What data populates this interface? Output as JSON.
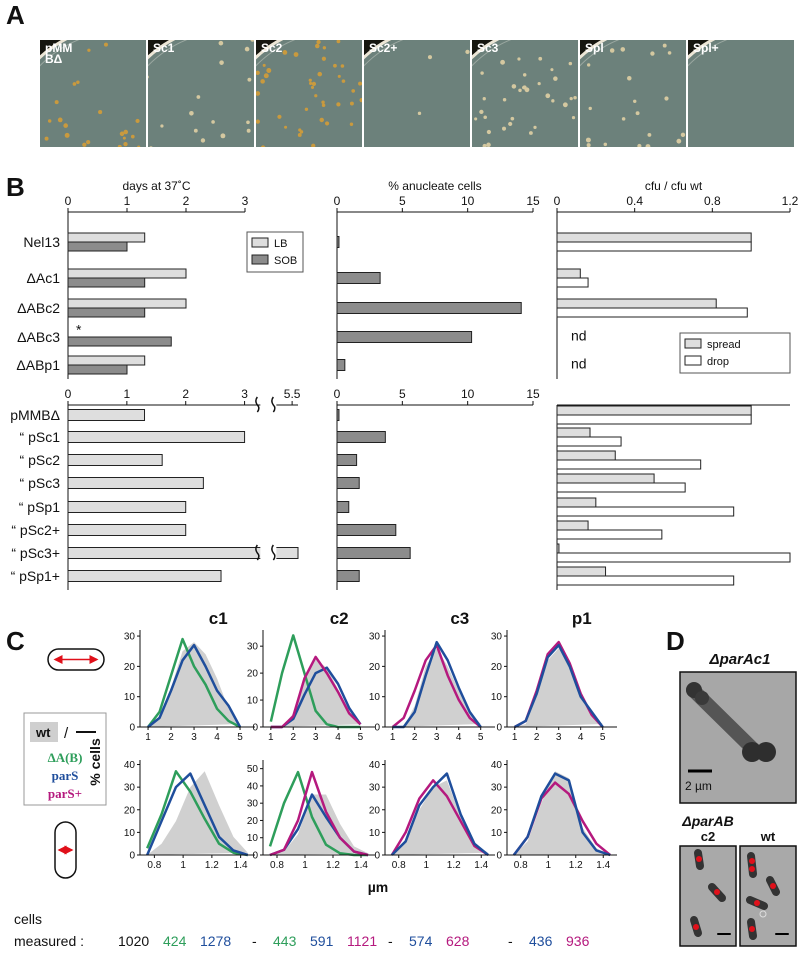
{
  "panel_labels": [
    "A",
    "B",
    "C",
    "D"
  ],
  "panel_a": {
    "plates": [
      [
        "pMM",
        "BΔ"
      ],
      [
        "Sc1"
      ],
      [
        "Sc2"
      ],
      [
        "Sc2+"
      ],
      [
        "Sc3"
      ],
      [
        "Spl"
      ],
      [
        "Spl+"
      ]
    ]
  },
  "chart_data": [
    {
      "type": "bar",
      "orientation": "horizontal",
      "title": "days at 37˚C",
      "categories": [
        "Nel13",
        "ΔAc1",
        "ΔABc2",
        "ΔABc3",
        "ΔABp1"
      ],
      "xlim": [
        0,
        3
      ],
      "xticks": [
        0,
        1,
        2,
        3
      ],
      "legend": "upper right",
      "series": [
        {
          "name": "LB",
          "color": "#dedede",
          "values": [
            1.3,
            2.0,
            2.0,
            null,
            1.3
          ],
          "value_labels": [
            null,
            null,
            null,
            "*",
            null
          ]
        },
        {
          "name": "SOB",
          "color": "#8c8c8c",
          "values": [
            1.0,
            1.3,
            1.3,
            1.75,
            1.0
          ]
        }
      ]
    },
    {
      "type": "bar",
      "orientation": "horizontal",
      "title": "% anucleate cells",
      "xlim": [
        0,
        15
      ],
      "xticks": [
        0,
        5,
        10,
        15
      ],
      "series": [
        {
          "color": "#8c8c8c",
          "values": [
            0.15,
            3.3,
            14.1,
            10.3,
            0.6
          ]
        }
      ]
    },
    {
      "type": "bar",
      "orientation": "horizontal",
      "title": "cfu / cfu wt",
      "xlim": [
        0,
        1.2
      ],
      "xticks": [
        0,
        0.4,
        0.8,
        1.2
      ],
      "legend": "lower right",
      "series": [
        {
          "name": "spread",
          "color": "#dedede",
          "values": [
            1.0,
            0.12,
            0.82,
            null,
            null
          ],
          "value_labels": [
            null,
            null,
            null,
            "nd",
            "nd"
          ]
        },
        {
          "name": "drop",
          "color": "#ffffff",
          "values": [
            1.0,
            0.16,
            0.98,
            null,
            null
          ]
        }
      ]
    },
    {
      "type": "bar",
      "orientation": "horizontal",
      "categories": [
        "pMMBΔ",
        "“ pSc1",
        "“ pSc2",
        "“ pSc3",
        "“ pSp1",
        "“ pSc2+",
        "“ pSc3+",
        "“ pSp1+"
      ],
      "xlim": [
        0,
        5.6
      ],
      "xbreak": [
        3.2,
        5.3
      ],
      "xticks": [
        0,
        1,
        2,
        3,
        5.5
      ],
      "series": [
        {
          "color": "#dedede",
          "values": [
            1.3,
            3.0,
            1.6,
            2.3,
            2.0,
            2.0,
            5.6,
            2.6
          ]
        }
      ]
    },
    {
      "type": "bar",
      "orientation": "horizontal",
      "xlim": [
        0,
        15
      ],
      "xticks": [
        0,
        5,
        10,
        15
      ],
      "series": [
        {
          "color": "#8c8c8c",
          "values": [
            0.15,
            3.7,
            1.5,
            1.7,
            0.9,
            4.5,
            5.6,
            1.7
          ]
        }
      ]
    },
    {
      "type": "bar",
      "orientation": "horizontal",
      "xlim": [
        0,
        1.2
      ],
      "series": [
        {
          "color": "#dedede",
          "values": [
            1.0,
            0.17,
            0.3,
            0.5,
            0.2,
            0.16,
            0.01,
            0.25
          ]
        },
        {
          "color": "#ffffff",
          "values": [
            1.0,
            0.33,
            0.74,
            0.66,
            0.91,
            0.54,
            1.2,
            0.91
          ]
        }
      ]
    },
    {
      "type": "line",
      "title": "c1",
      "x": [
        1,
        1.5,
        2,
        2.5,
        3,
        3.5,
        4,
        4.5,
        5
      ],
      "xlim": [
        0.65,
        5.65
      ],
      "ylim": [
        0,
        32
      ],
      "xticks": [
        1,
        2,
        3,
        4,
        5
      ],
      "yticks": [
        0,
        10,
        20,
        30
      ],
      "series": [
        {
          "color": "#d0d0d0",
          "area": true,
          "values": [
            0,
            3,
            13,
            25,
            28,
            24,
            16,
            6,
            1
          ]
        },
        {
          "color": "#2e9e5b",
          "values": [
            0,
            5,
            17,
            29,
            20,
            14,
            6,
            2,
            0
          ]
        },
        {
          "color": "#1f4e9c",
          "values": [
            0,
            3,
            12,
            22,
            27,
            20,
            12,
            7,
            0
          ]
        }
      ]
    },
    {
      "type": "line",
      "title": "c2",
      "x": [
        1,
        1.5,
        2,
        2.5,
        3,
        3.5,
        4,
        4.5,
        5
      ],
      "xlim": [
        0.65,
        5.65
      ],
      "ylim": [
        0,
        36
      ],
      "xticks": [
        1,
        2,
        3,
        4,
        5
      ],
      "yticks": [
        0,
        10,
        20,
        30
      ],
      "series": [
        {
          "color": "#d0d0d0",
          "area": true,
          "values": [
            0,
            0,
            5,
            17,
            25,
            22,
            14,
            6,
            1
          ]
        },
        {
          "color": "#2e9e5b",
          "values": [
            2,
            20,
            34,
            20,
            6,
            1,
            0,
            0,
            0
          ]
        },
        {
          "color": "#1f4e9c",
          "values": [
            0,
            0,
            3,
            12,
            20,
            22,
            16,
            7,
            1
          ]
        },
        {
          "color": "#b5197e",
          "values": [
            0,
            0,
            4,
            18,
            26,
            20,
            13,
            5,
            1
          ]
        }
      ]
    },
    {
      "type": "line",
      "title": "c3",
      "x": [
        1,
        1.5,
        2,
        2.5,
        3,
        3.5,
        4,
        4.5,
        5
      ],
      "xlim": [
        0.65,
        5.65
      ],
      "ylim": [
        0,
        32
      ],
      "xticks": [
        1,
        2,
        3,
        4,
        5
      ],
      "yticks": [
        0,
        10,
        20,
        30
      ],
      "series": [
        {
          "color": "#d0d0d0",
          "area": true,
          "values": [
            0,
            0,
            7,
            20,
            26,
            20,
            12,
            5,
            1
          ]
        },
        {
          "color": "#b5197e",
          "values": [
            0,
            3,
            12,
            22,
            27,
            17,
            9,
            3,
            0
          ]
        },
        {
          "color": "#1f4e9c",
          "values": [
            0,
            0,
            5,
            17,
            28,
            22,
            13,
            5,
            0
          ]
        }
      ]
    },
    {
      "type": "line",
      "title": "p1",
      "x": [
        1,
        1.5,
        2,
        2.5,
        3,
        3.5,
        4,
        4.5,
        5
      ],
      "xlim": [
        0.65,
        5.65
      ],
      "ylim": [
        0,
        32
      ],
      "xticks": [
        1,
        2,
        3,
        4,
        5
      ],
      "yticks": [
        0,
        10,
        20,
        30
      ],
      "series": [
        {
          "color": "#d0d0d0",
          "area": true,
          "values": [
            0,
            1,
            10,
            22,
            26,
            22,
            12,
            4,
            1
          ]
        },
        {
          "color": "#b5197e",
          "values": [
            0,
            2,
            12,
            24,
            28,
            21,
            11,
            4,
            0
          ]
        },
        {
          "color": "#1f4e9c",
          "values": [
            0,
            2,
            11,
            23,
            27,
            20,
            10,
            5,
            0
          ]
        }
      ]
    },
    {
      "type": "line",
      "x": [
        0.75,
        0.85,
        0.95,
        1.05,
        1.15,
        1.25,
        1.35,
        1.45
      ],
      "xlim": [
        0.7,
        1.5
      ],
      "ylim": [
        0,
        42
      ],
      "xticks": [
        0.8,
        1,
        1.2,
        1.4
      ],
      "yticks": [
        0,
        10,
        20,
        30,
        40
      ],
      "series": [
        {
          "color": "#d0d0d0",
          "area": true,
          "values": [
            0,
            5,
            15,
            30,
            37,
            22,
            8,
            1
          ]
        },
        {
          "color": "#2e9e5b",
          "values": [
            3,
            18,
            37,
            28,
            16,
            5,
            1,
            0
          ]
        },
        {
          "color": "#1f4e9c",
          "values": [
            0,
            15,
            30,
            36,
            22,
            8,
            2,
            0
          ]
        }
      ]
    },
    {
      "type": "line",
      "x": [
        0.75,
        0.85,
        0.95,
        1.05,
        1.15,
        1.25,
        1.35,
        1.45
      ],
      "xlim": [
        0.7,
        1.5
      ],
      "ylim": [
        0,
        55
      ],
      "xticks": [
        0.8,
        1,
        1.2,
        1.4
      ],
      "yticks": [
        0,
        10,
        20,
        30,
        40,
        50
      ],
      "series": [
        {
          "color": "#d0d0d0",
          "area": true,
          "values": [
            0,
            2,
            12,
            35,
            35,
            18,
            5,
            1
          ]
        },
        {
          "color": "#2e9e5b",
          "values": [
            5,
            30,
            48,
            22,
            6,
            1,
            0,
            0
          ]
        },
        {
          "color": "#1f4e9c",
          "values": [
            0,
            3,
            15,
            35,
            22,
            10,
            2,
            0
          ]
        },
        {
          "color": "#b5197e",
          "values": [
            0,
            3,
            20,
            48,
            25,
            10,
            2,
            0
          ]
        }
      ]
    },
    {
      "type": "line",
      "x": [
        0.75,
        0.85,
        0.95,
        1.05,
        1.15,
        1.25,
        1.35,
        1.45
      ],
      "xlim": [
        0.7,
        1.5
      ],
      "ylim": [
        0,
        42
      ],
      "xticks": [
        0.8,
        1,
        1.2,
        1.4
      ],
      "yticks": [
        0,
        10,
        20,
        30,
        40
      ],
      "series": [
        {
          "color": "#d0d0d0",
          "area": true,
          "values": [
            0,
            6,
            20,
            30,
            33,
            17,
            5,
            1
          ]
        },
        {
          "color": "#b5197e",
          "values": [
            0,
            10,
            25,
            33,
            26,
            15,
            4,
            0
          ]
        },
        {
          "color": "#1f4e9c",
          "values": [
            0,
            6,
            22,
            30,
            36,
            18,
            5,
            0
          ]
        }
      ]
    },
    {
      "type": "line",
      "x": [
        0.75,
        0.85,
        0.95,
        1.05,
        1.15,
        1.25,
        1.35,
        1.45
      ],
      "xlim": [
        0.7,
        1.5
      ],
      "ylim": [
        0,
        42
      ],
      "xticks": [
        0.8,
        1,
        1.2,
        1.4
      ],
      "yticks": [
        0,
        10,
        20,
        30,
        40
      ],
      "series": [
        {
          "color": "#d0d0d0",
          "area": true,
          "values": [
            0,
            6,
            23,
            37,
            34,
            12,
            3,
            0
          ]
        },
        {
          "color": "#b5197e",
          "values": [
            0,
            8,
            25,
            32,
            27,
            15,
            5,
            0
          ]
        },
        {
          "color": "#1f4e9c",
          "values": [
            0,
            8,
            26,
            36,
            33,
            10,
            2,
            0
          ]
        }
      ]
    }
  ],
  "panel_c": {
    "ylabel": "% cells",
    "xlabel": "µm",
    "legend": {
      "wt": "wt",
      "sep": "/",
      "entries": [
        {
          "text": "ΔA(B)",
          "color": "#2e9e5b"
        },
        {
          "text": "parS",
          "color": "#1f4e9c"
        },
        {
          "text": "parS+",
          "color": "#b5197e"
        }
      ]
    },
    "cells_label": [
      "cells",
      "measured :"
    ],
    "cells_measured": [
      {
        "values": [
          1020,
          424,
          1278
        ],
        "colors": [
          "#111111",
          "#2e9e5b",
          "#1f4e9c"
        ]
      },
      {
        "values": [
          "-",
          443,
          591,
          1121
        ],
        "colors": [
          "#111111",
          "#2e9e5b",
          "#1f4e9c",
          "#b5197e"
        ]
      },
      {
        "values": [
          "-",
          574,
          628
        ],
        "colors": [
          "#111111",
          "#1f4e9c",
          "#b5197e"
        ]
      },
      {
        "values": [
          "-",
          436,
          936
        ],
        "colors": [
          "#111111",
          "#1f4e9c",
          "#b5197e"
        ]
      }
    ]
  },
  "panel_d": {
    "title": "ΔparAc1",
    "scale": "2 µm",
    "subtitle": "ΔparAB",
    "images": [
      "c2",
      "wt"
    ]
  }
}
